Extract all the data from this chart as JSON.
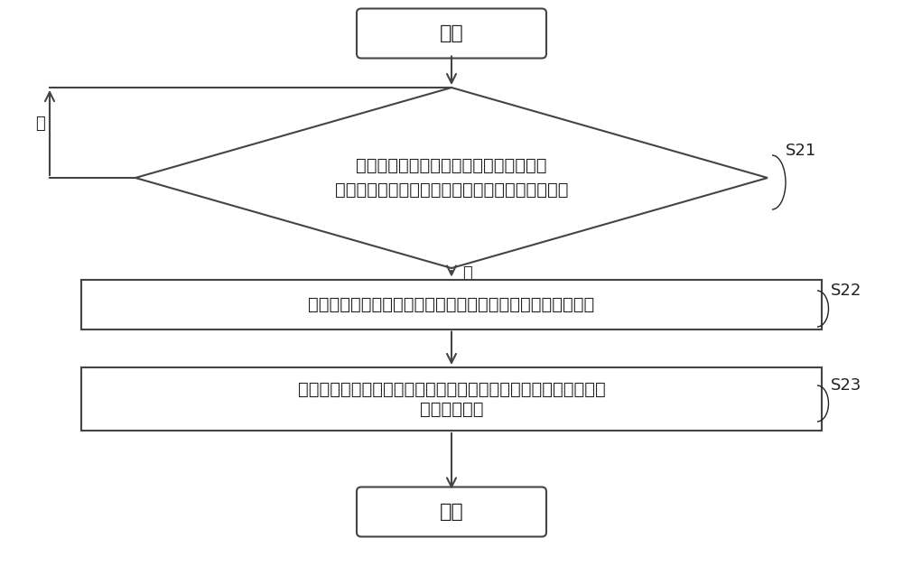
{
  "bg_color": "#ffffff",
  "box_color": "#ffffff",
  "box_edge_color": "#444444",
  "arrow_color": "#444444",
  "text_color": "#222222",
  "start_end_text_start": "开始",
  "start_end_text_end": "结束",
  "diamond_line1": "与其他用户终端建立前台视频通话连接后",
  "diamond_line2": "监测视频通话显示窗口是否被切换为后台运行状态",
  "diamond_label": "S21",
  "rect1_text": "分别提取所述视频通话显示窗口中的用户主体图像和背景图像",
  "rect1_label": "S22",
  "rect2_line1": "将提取的所述用户主体图像或所述背景图像进行处理后传输给所述",
  "rect2_line2": "其他用户终端",
  "rect2_label": "S23",
  "yes_label": "是",
  "no_label": "否",
  "font_size_main": 14,
  "font_size_label": 13,
  "font_size_sn": 13,
  "lw": 1.5
}
